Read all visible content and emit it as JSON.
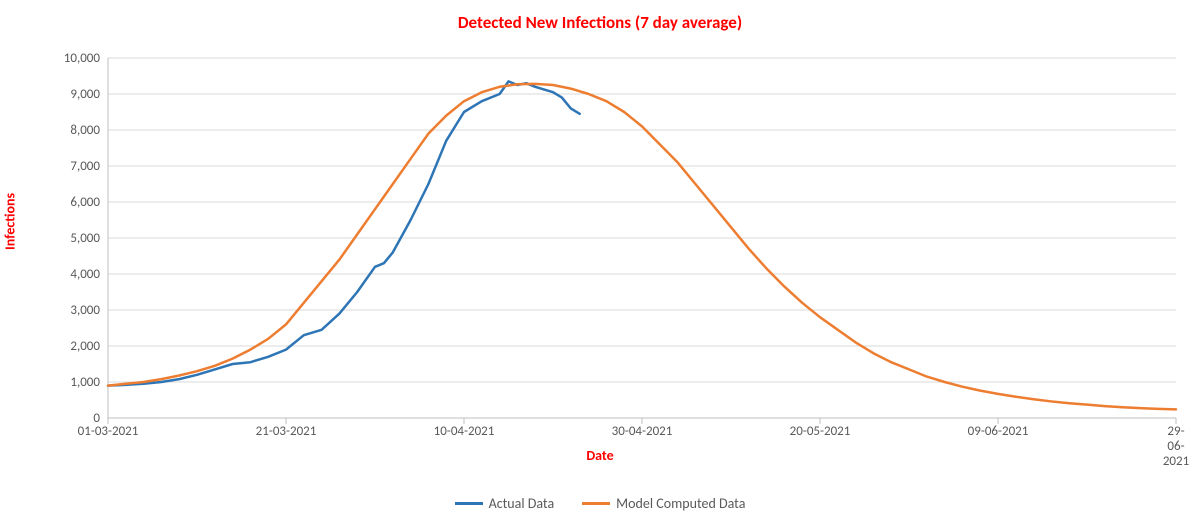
{
  "chart": {
    "type": "line",
    "title": "Detected New Infections (7 day average)",
    "title_color": "#ff0000",
    "title_fontsize": 17,
    "xaxis_label": "Date",
    "yaxis_label": "Infections",
    "axis_label_color": "#ff0000",
    "axis_label_fontsize": 14,
    "tick_color": "#595959",
    "tick_fontsize": 13,
    "background_color": "#ffffff",
    "gridline_color": "#d9d9d9",
    "axis_line_color": "#bfbfbf",
    "line_width": 2.5,
    "ylim": [
      0,
      10000
    ],
    "ytick_step": 1000,
    "ytick_labels": [
      "0",
      "1,000",
      "2,000",
      "3,000",
      "4,000",
      "5,000",
      "6,000",
      "7,000",
      "8,000",
      "9,000",
      "10,000"
    ],
    "xtick_positions": [
      0,
      20,
      40,
      60,
      80,
      100,
      120
    ],
    "xtick_labels": [
      "01-03-2021",
      "21-03-2021",
      "10-04-2021",
      "30-04-2021",
      "20-05-2021",
      "09-06-2021",
      "29-06-2021"
    ],
    "x_domain_days": 120,
    "series": [
      {
        "name": "Actual Data",
        "color": "#2e75b6",
        "points": [
          [
            0,
            900
          ],
          [
            2,
            920
          ],
          [
            4,
            950
          ],
          [
            6,
            1000
          ],
          [
            8,
            1080
          ],
          [
            10,
            1200
          ],
          [
            12,
            1350
          ],
          [
            14,
            1500
          ],
          [
            16,
            1550
          ],
          [
            18,
            1700
          ],
          [
            20,
            1900
          ],
          [
            22,
            2300
          ],
          [
            24,
            2450
          ],
          [
            26,
            2900
          ],
          [
            28,
            3500
          ],
          [
            30,
            4200
          ],
          [
            31,
            4300
          ],
          [
            32,
            4600
          ],
          [
            34,
            5500
          ],
          [
            36,
            6500
          ],
          [
            38,
            7700
          ],
          [
            40,
            8500
          ],
          [
            42,
            8800
          ],
          [
            44,
            9000
          ],
          [
            45,
            9350
          ],
          [
            46,
            9250
          ],
          [
            47,
            9300
          ],
          [
            48,
            9200
          ],
          [
            50,
            9050
          ],
          [
            51,
            8900
          ],
          [
            52,
            8600
          ],
          [
            53,
            8450
          ]
        ]
      },
      {
        "name": "Model Computed Data",
        "color": "#ed7d31",
        "points": [
          [
            0,
            900
          ],
          [
            2,
            950
          ],
          [
            4,
            1000
          ],
          [
            6,
            1080
          ],
          [
            8,
            1180
          ],
          [
            10,
            1300
          ],
          [
            12,
            1450
          ],
          [
            14,
            1650
          ],
          [
            16,
            1900
          ],
          [
            18,
            2200
          ],
          [
            20,
            2600
          ],
          [
            22,
            3200
          ],
          [
            24,
            3800
          ],
          [
            26,
            4400
          ],
          [
            28,
            5100
          ],
          [
            30,
            5800
          ],
          [
            32,
            6500
          ],
          [
            34,
            7200
          ],
          [
            36,
            7900
          ],
          [
            38,
            8400
          ],
          [
            40,
            8800
          ],
          [
            42,
            9050
          ],
          [
            44,
            9200
          ],
          [
            46,
            9270
          ],
          [
            48,
            9280
          ],
          [
            50,
            9250
          ],
          [
            52,
            9150
          ],
          [
            54,
            9000
          ],
          [
            56,
            8800
          ],
          [
            58,
            8500
          ],
          [
            60,
            8100
          ],
          [
            62,
            7600
          ],
          [
            64,
            7100
          ],
          [
            66,
            6500
          ],
          [
            68,
            5900
          ],
          [
            70,
            5300
          ],
          [
            72,
            4700
          ],
          [
            74,
            4150
          ],
          [
            76,
            3650
          ],
          [
            78,
            3200
          ],
          [
            80,
            2800
          ],
          [
            82,
            2450
          ],
          [
            84,
            2100
          ],
          [
            86,
            1800
          ],
          [
            88,
            1550
          ],
          [
            90,
            1350
          ],
          [
            92,
            1150
          ],
          [
            94,
            1000
          ],
          [
            96,
            870
          ],
          [
            98,
            760
          ],
          [
            100,
            670
          ],
          [
            102,
            590
          ],
          [
            104,
            520
          ],
          [
            106,
            460
          ],
          [
            108,
            410
          ],
          [
            110,
            370
          ],
          [
            112,
            330
          ],
          [
            114,
            300
          ],
          [
            116,
            275
          ],
          [
            118,
            255
          ],
          [
            120,
            240
          ]
        ]
      }
    ],
    "legend_fontsize": 14
  }
}
